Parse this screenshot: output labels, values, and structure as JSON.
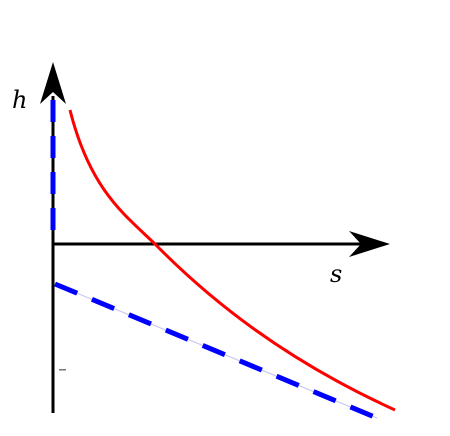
{
  "diagram": {
    "labels": {
      "vertical_axis": "h",
      "horizontal_axis": "s"
    },
    "colors": {
      "axes": "#000000",
      "curve": "#ff0000",
      "dashed": "#0000ff",
      "guide": "#c8c8f0"
    }
  }
}
